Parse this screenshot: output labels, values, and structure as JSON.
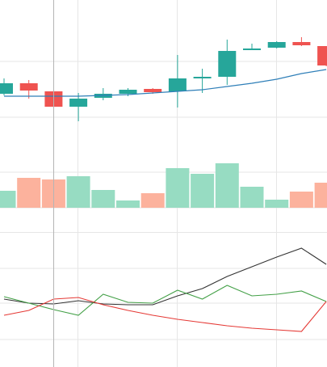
{
  "chart_data": [
    {
      "type": "candlestick",
      "categories": [
        null,
        null,
        null,
        null,
        null,
        null,
        null,
        null,
        null,
        null,
        null,
        null,
        null,
        null
      ],
      "open": [
        49,
        62,
        52,
        33,
        44,
        49,
        55,
        52,
        68,
        70,
        103,
        106,
        113,
        108
      ],
      "high": [
        68,
        66,
        53,
        50,
        56,
        56,
        56,
        97,
        80,
        116,
        111,
        114,
        119,
        108
      ],
      "low": [
        47,
        43,
        32,
        15,
        41,
        46,
        49,
        32,
        50,
        60,
        103,
        105,
        108,
        83
      ],
      "close": [
        62,
        53,
        33,
        43,
        49,
        54,
        51,
        68,
        70,
        102,
        105,
        113,
        109,
        84
      ],
      "up_color": "#26a69a",
      "down_color": "#ef5350",
      "line": {
        "color": "#2f7fb8",
        "values": [
          46,
          46,
          46,
          46,
          47,
          48,
          50,
          52,
          54,
          58,
          62,
          67,
          74,
          79
        ]
      },
      "ylim": [
        0,
        165
      ],
      "yticks": [
        20,
        89
      ],
      "grid": true
    },
    {
      "type": "bar",
      "values": [
        21,
        37,
        35,
        39,
        22,
        9,
        18,
        49,
        42,
        55,
        26,
        10,
        20,
        31
      ],
      "colors": [
        "#97dcc2",
        "#fcb29d",
        "#fcb29d",
        "#97dcc2",
        "#97dcc2",
        "#97dcc2",
        "#fcb29d",
        "#97dcc2",
        "#97dcc2",
        "#97dcc2",
        "#97dcc2",
        "#97dcc2",
        "#fcb29d",
        "#fcb29d"
      ],
      "ylim": [
        0,
        92
      ],
      "yticks": [
        0,
        44
      ],
      "grid": true
    },
    {
      "type": "line",
      "series": [
        {
          "color": "#333333",
          "values": [
            84,
            79,
            78,
            82,
            78,
            77,
            77,
            88,
            97,
            112,
            124,
            136,
            147,
            127
          ]
        },
        {
          "color": "#43a047",
          "values": [
            87,
            79,
            71,
            64,
            90,
            80,
            79,
            95,
            84,
            101,
            88,
            90,
            94,
            81
          ]
        },
        {
          "color": "#e53935",
          "values": [
            64,
            70,
            84,
            86,
            77,
            70,
            64,
            59,
            55,
            51,
            48,
            46,
            44,
            81
          ]
        }
      ],
      "ylim": [
        0,
        167
      ],
      "yticks": [
        34,
        79,
        122
      ],
      "grid": true
    }
  ]
}
